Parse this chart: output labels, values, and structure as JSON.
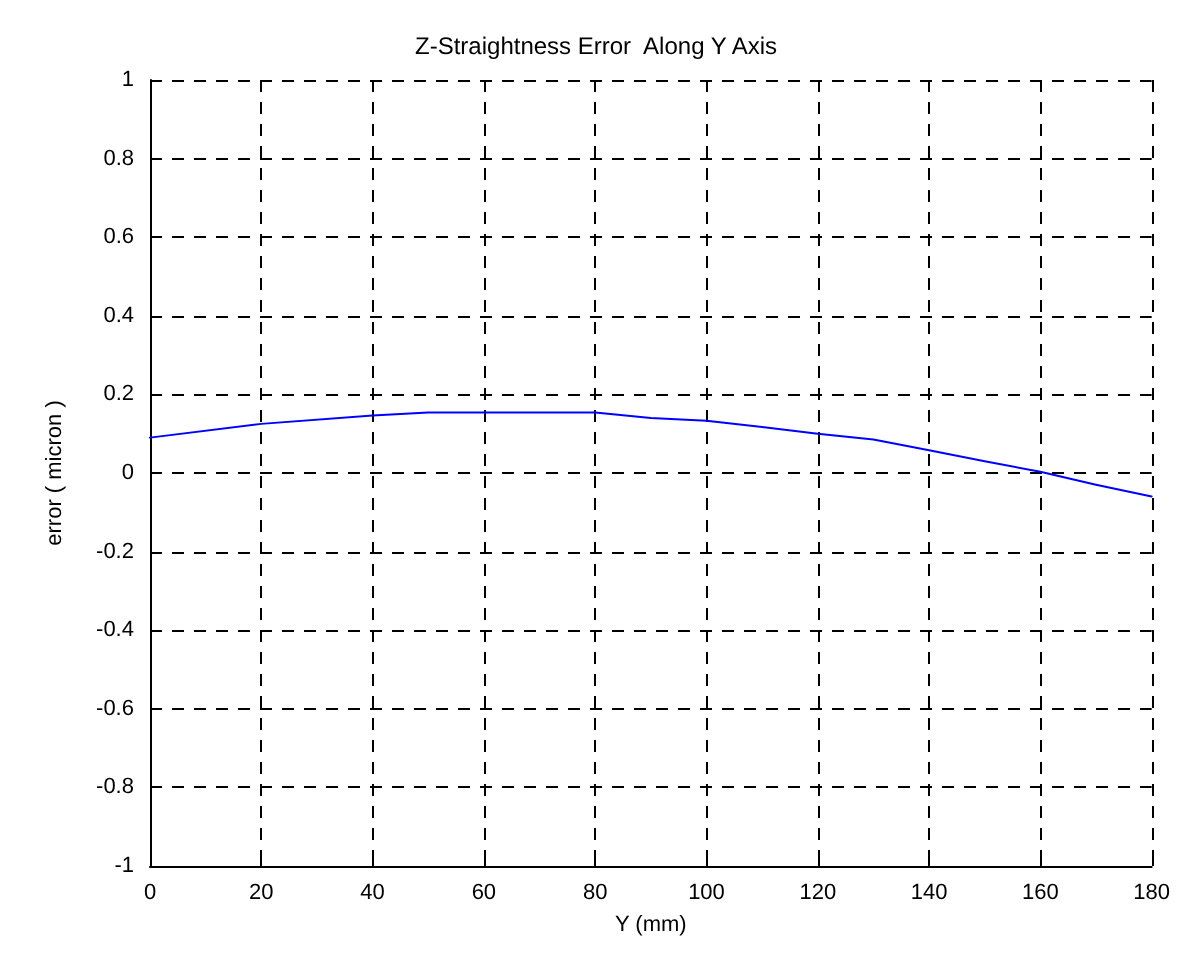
{
  "chart_data": {
    "type": "line",
    "title": "Z-Straightness Error  Along Y Axis",
    "xlabel": "Y (mm)",
    "ylabel": "error ( micron )",
    "x": [
      0,
      20,
      40,
      50,
      60,
      70,
      80,
      90,
      100,
      110,
      120,
      130,
      140,
      150,
      160,
      170,
      180
    ],
    "series": [
      {
        "color": "#0000ff",
        "values": [
          0.09,
          0.125,
          0.146,
          0.154,
          0.154,
          0.154,
          0.154,
          0.14,
          0.133,
          0.117,
          0.1,
          0.085,
          0.058,
          0.03,
          0.003,
          -0.03,
          -0.06
        ]
      }
    ],
    "xlim": [
      0,
      180
    ],
    "xticks": [
      0,
      20,
      40,
      60,
      80,
      100,
      120,
      140,
      160,
      180
    ],
    "ylim": [
      -1,
      1
    ],
    "yticks": [
      -1,
      -0.8,
      -0.6,
      -0.4,
      -0.2,
      0,
      0.2,
      0.4,
      0.6,
      0.8,
      1
    ],
    "grid": true,
    "line_style": "solid",
    "marker": "none"
  }
}
